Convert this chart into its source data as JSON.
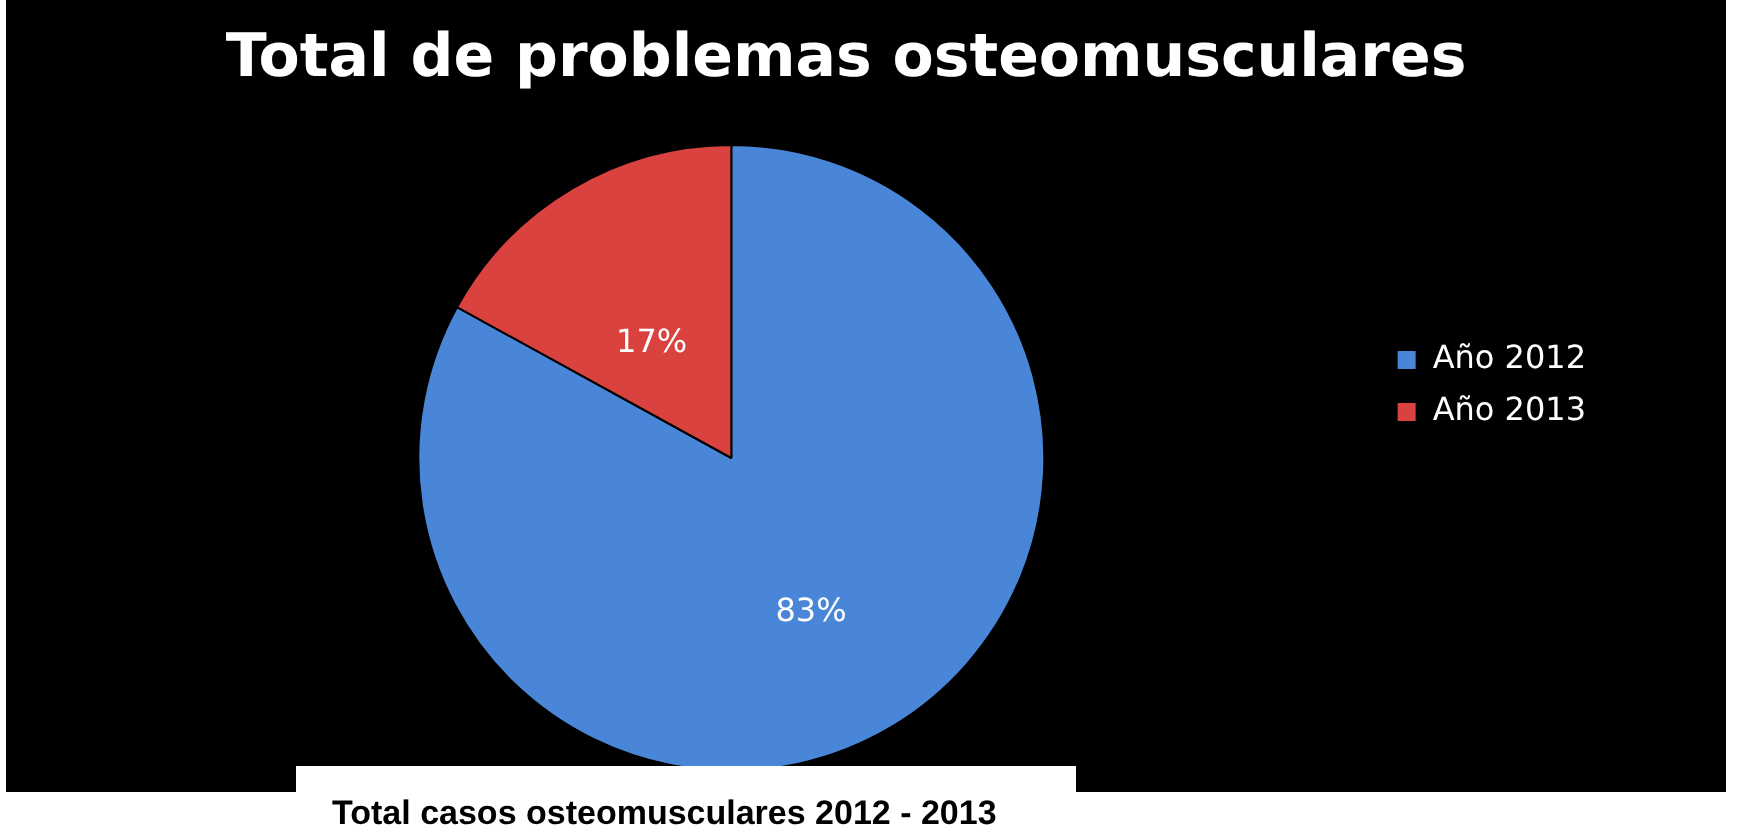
{
  "chart_data": {
    "type": "pie",
    "title": "Total de problemas osteomusculares",
    "categories": [
      "Año 2012",
      "Año 2013"
    ],
    "values": [
      83,
      17
    ],
    "value_labels": [
      "83%",
      "17%"
    ],
    "colors": [
      "#4a86d8",
      "#d9423f"
    ],
    "legend": "right",
    "annotations": [
      "Total casos osteomusculares 2012 - 2013"
    ]
  }
}
